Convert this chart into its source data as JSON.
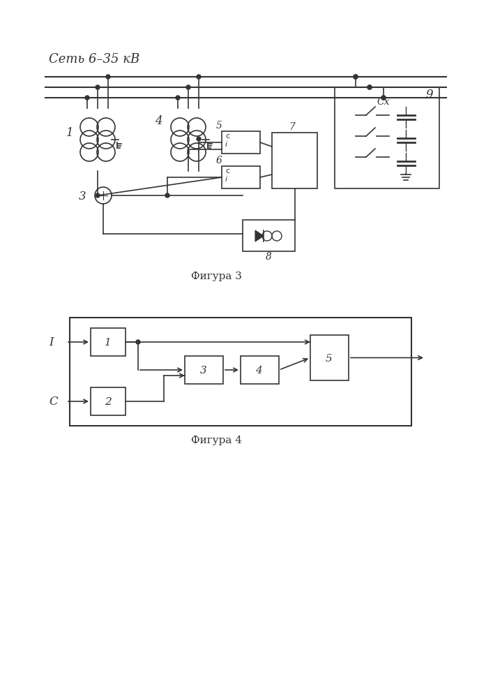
{
  "bg_color": "#ffffff",
  "line_color": "#333333",
  "fig3_caption": "Фигура 3",
  "fig4_caption": "Фигура 4",
  "bus_label": "Сеть 6–35 кВ"
}
